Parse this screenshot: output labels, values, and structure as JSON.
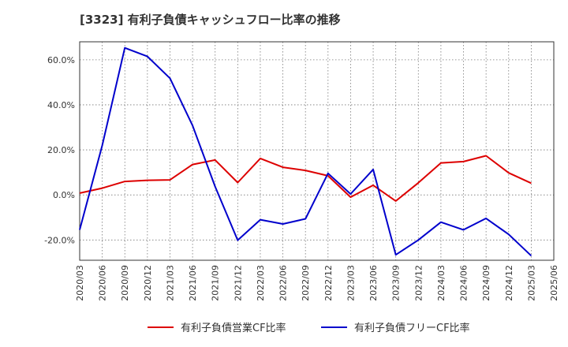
{
  "chart_data": {
    "type": "line",
    "title": "[3323]  有利子負債キャッシュフロー比率の推移",
    "x": [
      "2020/03",
      "2020/06",
      "2020/09",
      "2020/12",
      "2021/03",
      "2021/06",
      "2021/09",
      "2021/12",
      "2022/03",
      "2022/06",
      "2022/09",
      "2022/12",
      "2023/03",
      "2023/06",
      "2023/09",
      "2023/12",
      "2024/03",
      "2024/06",
      "2024/09",
      "2024/12",
      "2025/03",
      "2025/06"
    ],
    "series": [
      {
        "name": "有利子負債営業CF比率",
        "color": "#dd0000",
        "values": [
          0.8,
          3.0,
          6.0,
          6.5,
          6.7,
          13.5,
          15.5,
          5.5,
          16.2,
          12.3,
          10.9,
          8.5,
          -1.0,
          4.3,
          -2.7,
          5.4,
          14.2,
          14.8,
          17.4,
          9.8,
          5.2,
          null
        ]
      },
      {
        "name": "有利子負債フリーCF比率",
        "color": "#0000cc",
        "values": [
          -15.5,
          22.0,
          65.3,
          61.5,
          51.8,
          30.8,
          3.7,
          -20.1,
          -11.0,
          -12.9,
          -10.6,
          9.6,
          0.4,
          11.3,
          -26.6,
          -20.0,
          -12.1,
          -15.5,
          -10.4,
          -17.5,
          -27.0,
          null
        ]
      }
    ],
    "yticks": [
      "-20.0%",
      "0.0%",
      "20.0%",
      "40.0%",
      "60.0%"
    ],
    "ytick_values": [
      -20,
      0,
      20,
      40,
      60
    ],
    "ylim": [
      -29,
      68
    ],
    "grid": true,
    "legend_position": "bottom"
  }
}
